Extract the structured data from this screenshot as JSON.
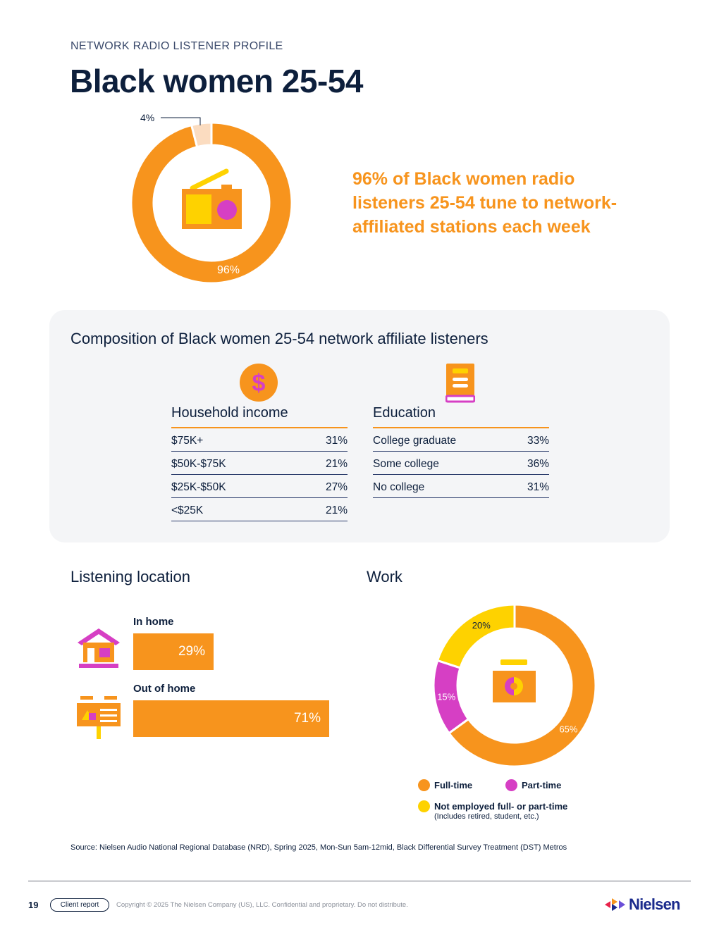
{
  "header": {
    "eyebrow": "NETWORK RADIO LISTENER PROFILE",
    "title": "Black women 25-54"
  },
  "hero": {
    "headline": "96% of Black women radio listeners 25-54 tune to network-affiliated stations each week",
    "donut_small_label": "4%",
    "donut_large_label": "96%",
    "icon": "radio-icon"
  },
  "composition": {
    "title": "Composition of Black women 25-54 network affiliate listeners",
    "income": {
      "heading": "Household income",
      "icon": "dollar-coin-icon",
      "rows": [
        {
          "label": "$75K+",
          "value": "31%"
        },
        {
          "label": "$50K-$75K",
          "value": "21%"
        },
        {
          "label": "$25K-$50K",
          "value": "27%"
        },
        {
          "label": "<$25K",
          "value": "21%"
        }
      ]
    },
    "education": {
      "heading": "Education",
      "icon": "book-icon",
      "rows": [
        {
          "label": "College graduate",
          "value": "33%"
        },
        {
          "label": "Some college",
          "value": "36%"
        },
        {
          "label": "No college",
          "value": "31%"
        }
      ]
    }
  },
  "listening": {
    "heading": "Listening location",
    "bars": [
      {
        "label": "In home",
        "value_text": "29%",
        "icon": "house-icon"
      },
      {
        "label": "Out of home",
        "value_text": "71%",
        "icon": "billboard-icon"
      }
    ]
  },
  "work": {
    "heading": "Work",
    "icon": "briefcase-icon",
    "legend": [
      {
        "label": "Full-time",
        "sub": ""
      },
      {
        "label": "Part-time",
        "sub": ""
      },
      {
        "label": "Not employed full- or part-time",
        "sub": "(Includes retired, student, etc.)"
      }
    ],
    "slice_labels": [
      "65%",
      "15%",
      "20%"
    ]
  },
  "chart_data": [
    {
      "type": "pie",
      "categories": [
        "",
        ""
      ],
      "values": [
        96,
        4
      ],
      "labels": [
        "96%",
        "4%"
      ],
      "colors": [
        "#f7941d",
        "#fbdcc0"
      ]
    },
    {
      "type": "bar",
      "categories": [
        "In home",
        "Out of home"
      ],
      "values": [
        29,
        71
      ],
      "labels": [
        "29%",
        "71%"
      ],
      "colors": [
        "#f7941d"
      ]
    },
    {
      "type": "pie",
      "categories": [
        "Full-time",
        "Part-time",
        "Not employed full- or part-time"
      ],
      "values": [
        65,
        15,
        20
      ],
      "labels": [
        "65%",
        "15%",
        "20%"
      ],
      "colors": [
        "#f7941d",
        "#d63fc4",
        "#fed200"
      ]
    }
  ],
  "source": "Source: Nielsen Audio National Regional Database (NRD), Spring 2025, Mon-Sun 5am-12mid, Black Differential Survey Treatment (DST) Metros",
  "footer": {
    "page_number": "19",
    "badge": "Client report",
    "copyright": "Copyright © 2025 The Nielsen Company (US), LLC. Confidential and proprietary. Do not distribute.",
    "logo_text": "Nielsen"
  },
  "colors": {
    "orange": "#f7941d",
    "magenta": "#d63fc4",
    "yellow": "#fed200",
    "peach": "#fbdcc0",
    "navy": "#0d1f3c"
  }
}
